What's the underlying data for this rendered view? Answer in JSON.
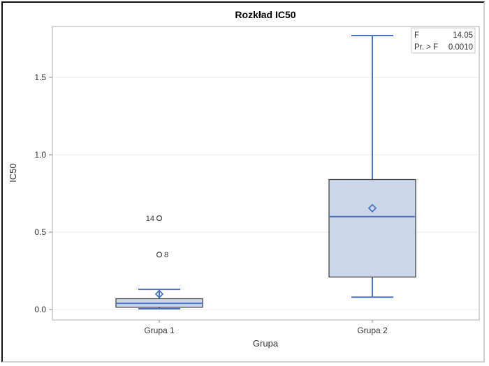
{
  "chart_data": {
    "type": "box",
    "title": "Rozkład IC50",
    "xlabel": "Grupa",
    "ylabel": "IC50",
    "ylim": [
      -0.04,
      1.82
    ],
    "yticks": [
      0.0,
      0.5,
      1.0,
      1.5
    ],
    "ytick_labels": [
      "0.0",
      "0.5",
      "1.0",
      "1.5"
    ],
    "grid": "horizontal",
    "categories": [
      "Grupa 1",
      "Grupa 2"
    ],
    "boxes": [
      {
        "name": "Grupa 1",
        "whisker_low": 0.005,
        "q1": 0.015,
        "median": 0.04,
        "q3": 0.07,
        "whisker_high": 0.13,
        "mean": 0.1,
        "outliers": [
          {
            "label": "14",
            "value": 0.59,
            "label_side": "left"
          },
          {
            "label": "8",
            "value": 0.355,
            "label_side": "right"
          }
        ]
      },
      {
        "name": "Grupa 2",
        "whisker_low": 0.08,
        "q1": 0.21,
        "median": 0.6,
        "q3": 0.84,
        "whisker_high": 1.77,
        "mean": 0.655,
        "outliers": []
      }
    ],
    "inset_table": {
      "placement": "top-right",
      "rows": [
        {
          "label": "F",
          "value": "14.05"
        },
        {
          "label": "Pr. > F",
          "value": "0.0010"
        }
      ]
    },
    "colors": {
      "box_fill": "#cbd7e8",
      "box_stroke": "#444444",
      "line": "#4a72c4",
      "grid": "#ebebeb",
      "axis": "#c4c8cc"
    }
  }
}
